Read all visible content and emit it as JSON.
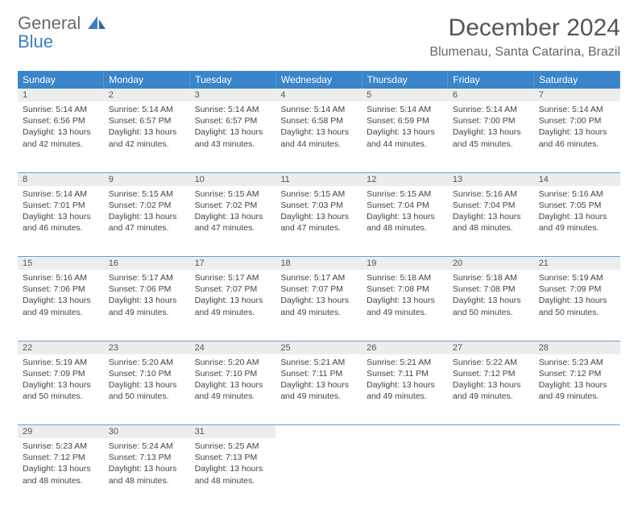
{
  "brand": {
    "general": "General",
    "blue": "Blue"
  },
  "title": "December 2024",
  "location": "Blumenau, Santa Catarina, Brazil",
  "colors": {
    "header_bg": "#3a85c9",
    "header_text": "#ffffff",
    "daynum_bg": "#eceded",
    "border": "#6a9fd0",
    "logo_gray": "#6a6a6a",
    "logo_blue": "#3a7fc4"
  },
  "weekdays": [
    "Sunday",
    "Monday",
    "Tuesday",
    "Wednesday",
    "Thursday",
    "Friday",
    "Saturday"
  ],
  "weeks": [
    [
      {
        "n": "1",
        "sr": "5:14 AM",
        "ss": "6:56 PM",
        "dl": "13 hours and 42 minutes."
      },
      {
        "n": "2",
        "sr": "5:14 AM",
        "ss": "6:57 PM",
        "dl": "13 hours and 42 minutes."
      },
      {
        "n": "3",
        "sr": "5:14 AM",
        "ss": "6:57 PM",
        "dl": "13 hours and 43 minutes."
      },
      {
        "n": "4",
        "sr": "5:14 AM",
        "ss": "6:58 PM",
        "dl": "13 hours and 44 minutes."
      },
      {
        "n": "5",
        "sr": "5:14 AM",
        "ss": "6:59 PM",
        "dl": "13 hours and 44 minutes."
      },
      {
        "n": "6",
        "sr": "5:14 AM",
        "ss": "7:00 PM",
        "dl": "13 hours and 45 minutes."
      },
      {
        "n": "7",
        "sr": "5:14 AM",
        "ss": "7:00 PM",
        "dl": "13 hours and 46 minutes."
      }
    ],
    [
      {
        "n": "8",
        "sr": "5:14 AM",
        "ss": "7:01 PM",
        "dl": "13 hours and 46 minutes."
      },
      {
        "n": "9",
        "sr": "5:15 AM",
        "ss": "7:02 PM",
        "dl": "13 hours and 47 minutes."
      },
      {
        "n": "10",
        "sr": "5:15 AM",
        "ss": "7:02 PM",
        "dl": "13 hours and 47 minutes."
      },
      {
        "n": "11",
        "sr": "5:15 AM",
        "ss": "7:03 PM",
        "dl": "13 hours and 47 minutes."
      },
      {
        "n": "12",
        "sr": "5:15 AM",
        "ss": "7:04 PM",
        "dl": "13 hours and 48 minutes."
      },
      {
        "n": "13",
        "sr": "5:16 AM",
        "ss": "7:04 PM",
        "dl": "13 hours and 48 minutes."
      },
      {
        "n": "14",
        "sr": "5:16 AM",
        "ss": "7:05 PM",
        "dl": "13 hours and 49 minutes."
      }
    ],
    [
      {
        "n": "15",
        "sr": "5:16 AM",
        "ss": "7:06 PM",
        "dl": "13 hours and 49 minutes."
      },
      {
        "n": "16",
        "sr": "5:17 AM",
        "ss": "7:06 PM",
        "dl": "13 hours and 49 minutes."
      },
      {
        "n": "17",
        "sr": "5:17 AM",
        "ss": "7:07 PM",
        "dl": "13 hours and 49 minutes."
      },
      {
        "n": "18",
        "sr": "5:17 AM",
        "ss": "7:07 PM",
        "dl": "13 hours and 49 minutes."
      },
      {
        "n": "19",
        "sr": "5:18 AM",
        "ss": "7:08 PM",
        "dl": "13 hours and 49 minutes."
      },
      {
        "n": "20",
        "sr": "5:18 AM",
        "ss": "7:08 PM",
        "dl": "13 hours and 50 minutes."
      },
      {
        "n": "21",
        "sr": "5:19 AM",
        "ss": "7:09 PM",
        "dl": "13 hours and 50 minutes."
      }
    ],
    [
      {
        "n": "22",
        "sr": "5:19 AM",
        "ss": "7:09 PM",
        "dl": "13 hours and 50 minutes."
      },
      {
        "n": "23",
        "sr": "5:20 AM",
        "ss": "7:10 PM",
        "dl": "13 hours and 50 minutes."
      },
      {
        "n": "24",
        "sr": "5:20 AM",
        "ss": "7:10 PM",
        "dl": "13 hours and 49 minutes."
      },
      {
        "n": "25",
        "sr": "5:21 AM",
        "ss": "7:11 PM",
        "dl": "13 hours and 49 minutes."
      },
      {
        "n": "26",
        "sr": "5:21 AM",
        "ss": "7:11 PM",
        "dl": "13 hours and 49 minutes."
      },
      {
        "n": "27",
        "sr": "5:22 AM",
        "ss": "7:12 PM",
        "dl": "13 hours and 49 minutes."
      },
      {
        "n": "28",
        "sr": "5:23 AM",
        "ss": "7:12 PM",
        "dl": "13 hours and 49 minutes."
      }
    ],
    [
      {
        "n": "29",
        "sr": "5:23 AM",
        "ss": "7:12 PM",
        "dl": "13 hours and 48 minutes."
      },
      {
        "n": "30",
        "sr": "5:24 AM",
        "ss": "7:13 PM",
        "dl": "13 hours and 48 minutes."
      },
      {
        "n": "31",
        "sr": "5:25 AM",
        "ss": "7:13 PM",
        "dl": "13 hours and 48 minutes."
      },
      null,
      null,
      null,
      null
    ]
  ],
  "labels": {
    "sunrise": "Sunrise:",
    "sunset": "Sunset:",
    "daylight": "Daylight:"
  }
}
